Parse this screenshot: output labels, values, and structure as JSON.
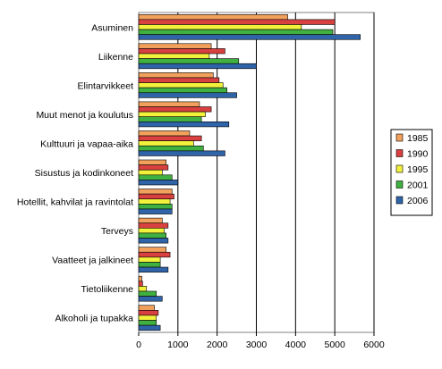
{
  "chart_data": {
    "type": "bar",
    "orientation": "horizontal",
    "title": "",
    "xlabel": "",
    "ylabel": "",
    "xlim": [
      0,
      6000
    ],
    "xticks": [
      0,
      1000,
      2000,
      3000,
      4000,
      5000,
      6000
    ],
    "grid": "vertical",
    "legend_position": "right",
    "categories": [
      "Asuminen",
      "Liikenne",
      "Elintarvikkeet",
      "Muut menot ja koulutus",
      "Kulttuuri ja vapaa-aika",
      "Sisustus ja kodinkoneet",
      "Hotellit, kahvilat ja ravintolat",
      "Terveys",
      "Vaatteet ja jalkineet",
      "Tietoliikenne",
      "Alkoholi ja tupakka"
    ],
    "series": [
      {
        "name": "1985",
        "color": "#F2A15C",
        "values": [
          3800,
          1850,
          1900,
          1550,
          1300,
          700,
          850,
          600,
          700,
          80,
          400
        ]
      },
      {
        "name": "1990",
        "color": "#D94040",
        "values": [
          5000,
          2200,
          2050,
          1850,
          1600,
          750,
          900,
          750,
          800,
          100,
          500
        ]
      },
      {
        "name": "1995",
        "color": "#F2F23C",
        "values": [
          4150,
          1800,
          2150,
          1700,
          1400,
          600,
          800,
          650,
          550,
          200,
          450
        ]
      },
      {
        "name": "2001",
        "color": "#40B040",
        "values": [
          4950,
          2550,
          2250,
          1600,
          1650,
          850,
          850,
          700,
          550,
          450,
          450
        ]
      },
      {
        "name": "2006",
        "color": "#2F64A8",
        "values": [
          5650,
          3000,
          2500,
          2300,
          2200,
          1000,
          850,
          750,
          750,
          600,
          550
        ]
      }
    ]
  }
}
